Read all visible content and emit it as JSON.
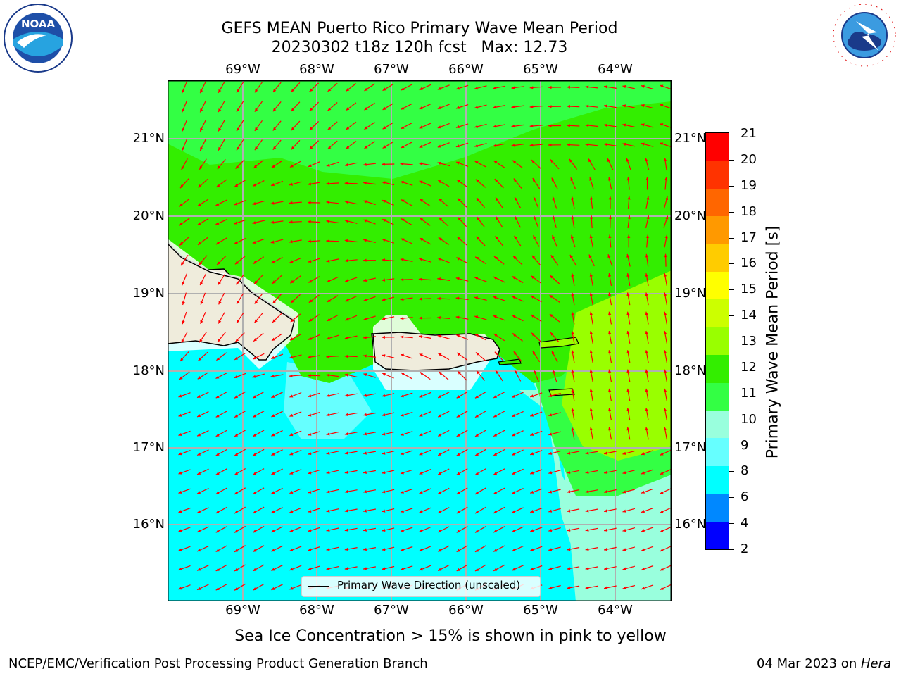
{
  "title": {
    "line1": "GEFS MEAN Puerto Rico Primary Wave Mean Period",
    "line2": "20230302 t18z 120h fcst   Max: 12.73"
  },
  "map": {
    "lon_labels": [
      "69°W",
      "68°W",
      "67°W",
      "66°W",
      "65°W",
      "64°W"
    ],
    "lat_labels": [
      "21°N",
      "20°N",
      "19°N",
      "18°N",
      "17°N",
      "16°N"
    ],
    "legend_label": "Primary Wave Direction (unscaled)",
    "arrow_color": "#ff0000",
    "land_color": "#efecdc",
    "grid_color": "#b0b0b0"
  },
  "colorbar": {
    "title": "Primary Wave Mean Period [s]",
    "ticks": [
      "21",
      "20",
      "19",
      "18",
      "17",
      "16",
      "15",
      "14",
      "13",
      "12",
      "11",
      "10",
      "9",
      "8",
      "6",
      "4",
      "2"
    ],
    "colors": [
      "#ff0000",
      "#ff3300",
      "#ff6600",
      "#ff9900",
      "#ffcc00",
      "#ffff00",
      "#ccff00",
      "#99ff00",
      "#33ee00",
      "#33ff44",
      "#99ffdd",
      "#66ffff",
      "#00ffff",
      "#0088ff",
      "#0000ff"
    ]
  },
  "note": "Sea Ice Concentration > 15% is shown in pink to yellow",
  "footer": {
    "left": "NCEP/EMC/Verification Post Processing Product Generation Branch",
    "right_date": "04 Mar 2023 on ",
    "right_host": "Hera"
  },
  "logos": {
    "noaa": "NOAA",
    "nws": "NATIONAL WEATHER SERVICE"
  }
}
